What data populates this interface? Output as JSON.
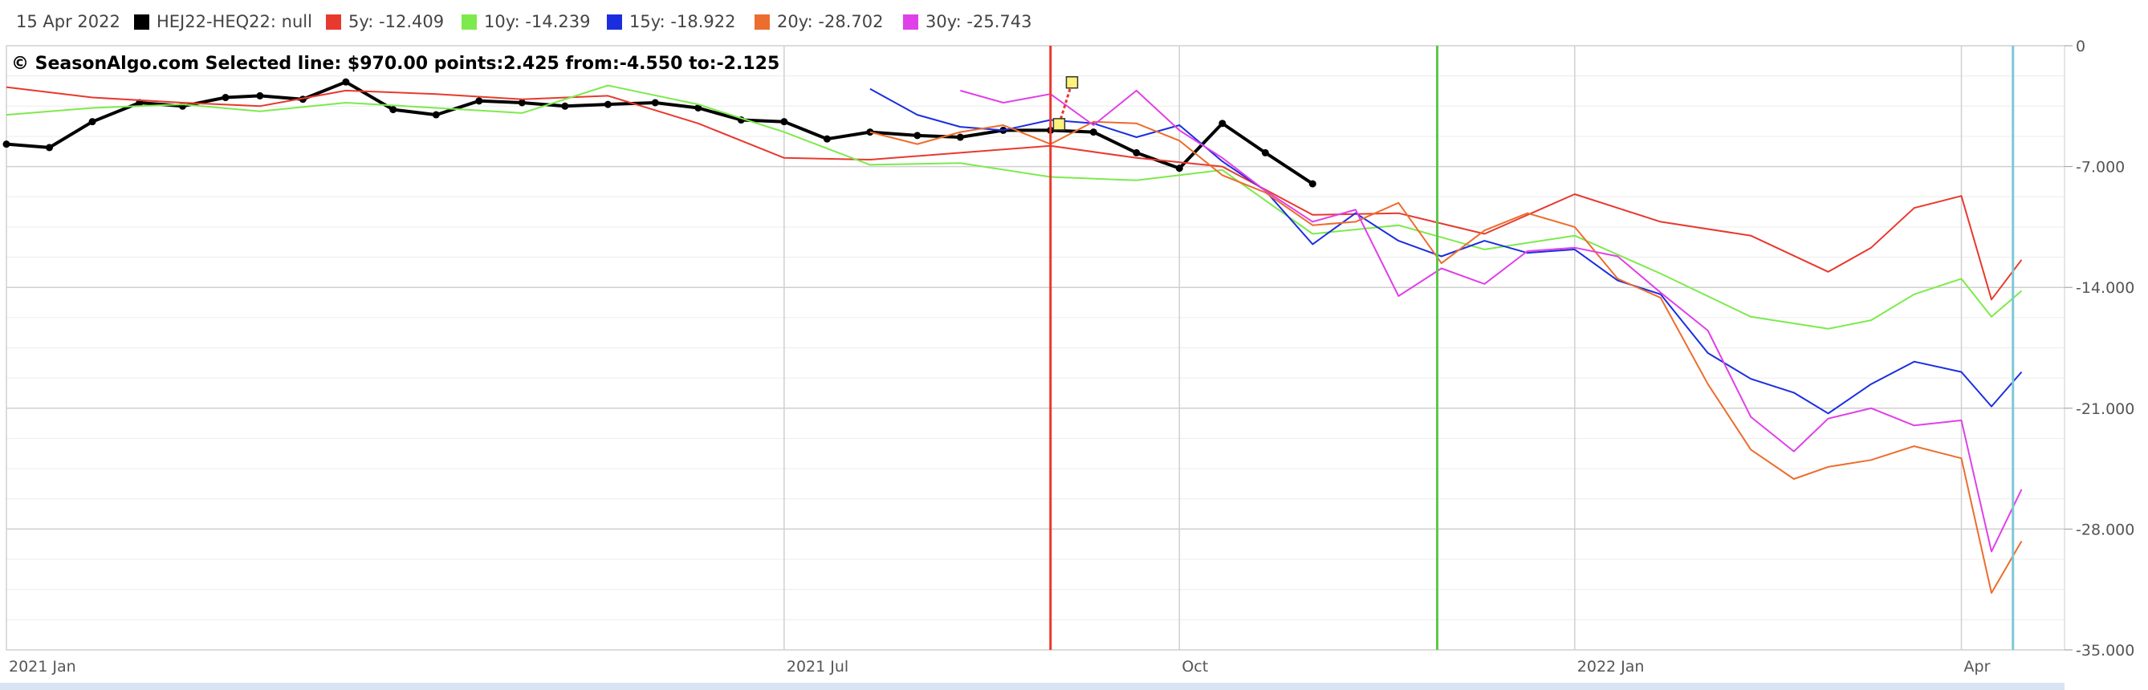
{
  "header": {
    "date": "15 Apr 2022",
    "legend": [
      {
        "name": "HEJ22-HEQ22",
        "value": "null",
        "color": "#000000"
      },
      {
        "name": "5y",
        "value": "-12.409",
        "color": "#e8392e"
      },
      {
        "name": "10y",
        "value": "-14.239",
        "color": "#7dea4c"
      },
      {
        "name": "15y",
        "value": "-18.922",
        "color": "#1a2ee0"
      },
      {
        "name": "20y",
        "value": "-28.702",
        "color": "#ec6d2d"
      },
      {
        "name": "30y",
        "value": "-25.743",
        "color": "#e040e8"
      }
    ]
  },
  "chart_data": {
    "type": "line",
    "annotation": "© SeasonAlgo.com Selected line: $970.00 points:2.425 from:-4.550 to:-2.125",
    "x_range": [
      "2021-01-01",
      "2022-04-25"
    ],
    "y_range": [
      -35,
      0
    ],
    "y_ticks": [
      0,
      -7,
      -14,
      -21,
      -28,
      -35
    ],
    "y_tick_labels": [
      "0",
      "-7.000",
      "-14.000",
      "-21.000",
      "-28.000",
      "-35.000"
    ],
    "x_ticks": [
      {
        "date": "2021-01-01",
        "label": "2021 Jan"
      },
      {
        "date": "2021-07-01",
        "label": "2021 Jul"
      },
      {
        "date": "2021-10-01",
        "label": "Oct"
      },
      {
        "date": "2022-01-01",
        "label": "2022 Jan"
      },
      {
        "date": "2022-04-01",
        "label": "Apr"
      }
    ],
    "vertical_lines": [
      {
        "date": "2021-09-01",
        "color": "#e8392e"
      },
      {
        "date": "2021-11-30",
        "color": "#5cc84a"
      },
      {
        "date": "2022-04-13",
        "color": "#7dc8d6"
      }
    ],
    "selected_segment": {
      "from": {
        "date": "2021-09-03",
        "value": -4.55
      },
      "to": {
        "date": "2021-09-06",
        "value": -2.125
      }
    },
    "grid": true,
    "series": [
      {
        "name": "HEJ22-HEQ22",
        "color": "#000000",
        "markers": true,
        "x": [
          "2021-01-01",
          "2021-01-11",
          "2021-01-21",
          "2021-02-01",
          "2021-02-11",
          "2021-02-21",
          "2021-03-01",
          "2021-03-11",
          "2021-03-21",
          "2021-04-01",
          "2021-04-11",
          "2021-04-21",
          "2021-05-01",
          "2021-05-11",
          "2021-05-21",
          "2021-06-01",
          "2021-06-11",
          "2021-06-21",
          "2021-07-01",
          "2021-07-11",
          "2021-07-21",
          "2021-08-01",
          "2021-08-11",
          "2021-08-21",
          "2021-09-01",
          "2021-09-11",
          "2021-09-21",
          "2021-10-01",
          "2021-10-11",
          "2021-10-21",
          "2021-11-01"
        ],
        "y": [
          -5.7,
          -5.9,
          -4.4,
          -3.3,
          -3.5,
          -3.0,
          -2.9,
          -3.1,
          -2.1,
          -3.7,
          -4.0,
          -3.2,
          -3.3,
          -3.5,
          -3.4,
          -3.3,
          -3.6,
          -4.3,
          -4.4,
          -5.4,
          -5.0,
          -5.2,
          -5.3,
          -4.9,
          -4.9,
          -5.0,
          -6.2,
          -7.1,
          -4.5,
          -6.2,
          -8.0
        ]
      },
      {
        "name": "5y",
        "color": "#e8392e",
        "x": [
          "2021-01-01",
          "2021-01-21",
          "2021-02-11",
          "2021-03-01",
          "2021-03-21",
          "2021-04-11",
          "2021-05-01",
          "2021-05-21",
          "2021-06-11",
          "2021-07-01",
          "2021-07-21",
          "2021-08-11",
          "2021-09-01",
          "2021-09-21",
          "2021-10-11",
          "2021-11-01",
          "2021-11-21",
          "2021-12-11",
          "2022-01-01",
          "2022-01-21",
          "2022-02-11",
          "2022-03-01",
          "2022-03-11",
          "2022-03-21",
          "2022-04-01",
          "2022-04-08",
          "2022-04-15"
        ],
        "y": [
          -2.4,
          -3.0,
          -3.3,
          -3.5,
          -2.6,
          -2.8,
          -3.1,
          -2.9,
          -4.5,
          -6.5,
          -6.6,
          -6.2,
          -5.8,
          -6.5,
          -7.0,
          -9.8,
          -9.7,
          -10.9,
          -8.6,
          -10.2,
          -11.0,
          -13.1,
          -11.7,
          -9.4,
          -8.7,
          -14.7,
          -12.4
        ]
      },
      {
        "name": "10y",
        "color": "#7dea4c",
        "x": [
          "2021-01-01",
          "2021-01-21",
          "2021-02-11",
          "2021-03-01",
          "2021-03-21",
          "2021-04-11",
          "2021-05-01",
          "2021-05-21",
          "2021-06-11",
          "2021-07-01",
          "2021-07-21",
          "2021-08-11",
          "2021-09-01",
          "2021-09-21",
          "2021-10-11",
          "2021-11-01",
          "2021-11-21",
          "2021-12-11",
          "2022-01-01",
          "2022-01-21",
          "2022-02-11",
          "2022-03-01",
          "2022-03-11",
          "2022-03-21",
          "2022-04-01",
          "2022-04-08",
          "2022-04-15"
        ],
        "y": [
          -4.0,
          -3.6,
          -3.4,
          -3.8,
          -3.3,
          -3.6,
          -3.9,
          -2.3,
          -3.4,
          -5.0,
          -6.9,
          -6.8,
          -7.6,
          -7.8,
          -7.2,
          -10.9,
          -10.4,
          -11.8,
          -11.0,
          -13.2,
          -15.7,
          -16.4,
          -15.9,
          -14.4,
          -13.5,
          -15.7,
          -14.2
        ]
      },
      {
        "name": "15y",
        "color": "#1a2ee0",
        "x": [
          "2021-07-21",
          "2021-08-01",
          "2021-08-11",
          "2021-08-21",
          "2021-09-01",
          "2021-09-11",
          "2021-09-21",
          "2021-10-01",
          "2021-10-11",
          "2021-10-21",
          "2021-11-01",
          "2021-11-11",
          "2021-11-21",
          "2021-12-01",
          "2021-12-11",
          "2021-12-21",
          "2022-01-01",
          "2022-01-11",
          "2022-01-21",
          "2022-02-01",
          "2022-02-11",
          "2022-02-21",
          "2022-03-01",
          "2022-03-11",
          "2022-03-21",
          "2022-04-01",
          "2022-04-08",
          "2022-04-15"
        ],
        "y": [
          -2.5,
          -4.0,
          -4.7,
          -4.9,
          -4.3,
          -4.5,
          -5.3,
          -4.6,
          -6.7,
          -8.4,
          -11.5,
          -9.7,
          -11.3,
          -12.2,
          -11.3,
          -12.0,
          -11.8,
          -13.6,
          -14.4,
          -17.8,
          -19.3,
          -20.1,
          -21.3,
          -19.6,
          -18.3,
          -18.9,
          -20.9,
          -18.9
        ]
      },
      {
        "name": "20y",
        "color": "#ec6d2d",
        "x": [
          "2021-07-21",
          "2021-08-01",
          "2021-08-11",
          "2021-08-21",
          "2021-09-01",
          "2021-09-11",
          "2021-09-21",
          "2021-10-01",
          "2021-10-11",
          "2021-10-21",
          "2021-11-01",
          "2021-11-11",
          "2021-11-21",
          "2021-12-01",
          "2021-12-11",
          "2021-12-21",
          "2022-01-01",
          "2022-01-11",
          "2022-01-21",
          "2022-02-01",
          "2022-02-11",
          "2022-02-21",
          "2022-03-01",
          "2022-03-11",
          "2022-03-21",
          "2022-04-01",
          "2022-04-08",
          "2022-04-15"
        ],
        "y": [
          -5.0,
          -5.7,
          -5.0,
          -4.6,
          -5.7,
          -4.4,
          -4.5,
          -5.5,
          -7.5,
          -8.5,
          -10.4,
          -10.2,
          -9.1,
          -12.6,
          -10.7,
          -9.7,
          -10.5,
          -13.5,
          -14.6,
          -19.6,
          -23.4,
          -25.1,
          -24.4,
          -24.0,
          -23.2,
          -23.9,
          -31.7,
          -28.7
        ]
      },
      {
        "name": "30y",
        "color": "#e040e8",
        "x": [
          "2021-08-11",
          "2021-08-21",
          "2021-09-01",
          "2021-09-11",
          "2021-09-21",
          "2021-10-01",
          "2021-10-11",
          "2021-10-21",
          "2021-11-01",
          "2021-11-11",
          "2021-11-21",
          "2021-12-01",
          "2021-12-11",
          "2021-12-21",
          "2022-01-01",
          "2022-01-11",
          "2022-01-21",
          "2022-02-01",
          "2022-02-11",
          "2022-02-21",
          "2022-03-01",
          "2022-03-11",
          "2022-03-21",
          "2022-04-01",
          "2022-04-08",
          "2022-04-15"
        ],
        "y": [
          -2.6,
          -3.3,
          -2.8,
          -4.6,
          -2.6,
          -4.9,
          -6.5,
          -8.4,
          -10.2,
          -9.5,
          -14.5,
          -12.9,
          -13.8,
          -11.9,
          -11.7,
          -12.2,
          -14.3,
          -16.5,
          -21.5,
          -23.5,
          -21.6,
          -21.0,
          -22.0,
          -21.7,
          -29.3,
          -25.7
        ]
      }
    ]
  }
}
